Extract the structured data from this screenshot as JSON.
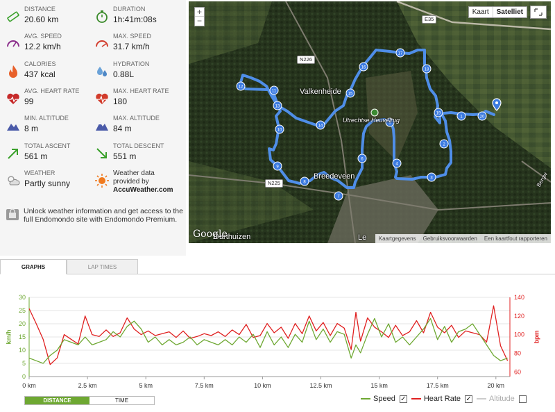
{
  "stats": [
    {
      "label": "DISTANCE",
      "value": "20.60 km",
      "icon": "ruler-icon"
    },
    {
      "label": "DURATION",
      "value": "1h:41m:08s",
      "icon": "stopwatch-icon"
    },
    {
      "label": "AVG. SPEED",
      "value": "12.2 km/h",
      "icon": "speedometer-icon"
    },
    {
      "label": "MAX. SPEED",
      "value": "31.7 km/h",
      "icon": "max-speedometer-icon"
    },
    {
      "label": "CALORIES",
      "value": "437 kcal",
      "icon": "flame-icon"
    },
    {
      "label": "HYDRATION",
      "value": "0.88L",
      "icon": "water-drop-icon"
    },
    {
      "label": "AVG. HEART RATE",
      "value": "99",
      "icon": "heart-icon"
    },
    {
      "label": "MAX. HEART RATE",
      "value": "180",
      "icon": "max-heart-icon"
    },
    {
      "label": "MIN. ALTITUDE",
      "value": "8 m",
      "icon": "mountain-icon"
    },
    {
      "label": "MAX. ALTITUDE",
      "value": "84 m",
      "icon": "max-mountain-icon"
    },
    {
      "label": "TOTAL ASCENT",
      "value": "561 m",
      "icon": "ascent-arrow-icon"
    },
    {
      "label": "TOTAL DESCENT",
      "value": "551 m",
      "icon": "descent-arrow-icon"
    }
  ],
  "weather": {
    "label": "WEATHER",
    "value": "Partly sunny",
    "provider_line1": "Weather data",
    "provider_line2": "provided by",
    "provider_name": "AccuWeather.com"
  },
  "promo": "Unlock weather information and get access to the full Endomondo site with Endomondo Premium.",
  "map": {
    "zoom_in": "+",
    "zoom_out": "−",
    "type_map": "Kaart",
    "type_satellite": "Satelliet",
    "places": [
      "Valkenheide",
      "Utrechtse Heuvelrug",
      "Breedeveen",
      "Darthuizen",
      "Le"
    ],
    "roads": [
      "E35",
      "N226",
      "N225"
    ],
    "side_road": "Bergw",
    "markers": [
      "1",
      "2",
      "3",
      "4",
      "5",
      "6",
      "7",
      "8",
      "9",
      "10",
      "11",
      "12",
      "13",
      "14",
      "15",
      "16",
      "17",
      "18",
      "19",
      "20"
    ],
    "attribution": "Google",
    "footer": [
      "Kaartgegevens",
      "Gebruiksvoorwaarden",
      "Een kaartfout rapporteren"
    ]
  },
  "tabs": [
    "GRAPHS",
    "LAP TIMES"
  ],
  "chart_data": {
    "type": "line",
    "x_label_ticks": [
      "0 km",
      "2.5 km",
      "5 km",
      "7.5 km",
      "10 km",
      "12.5 km",
      "15 km",
      "17.5 km",
      "20 km"
    ],
    "x_ticks": [
      0,
      2.5,
      5,
      7.5,
      10,
      12.5,
      15,
      17.5,
      20
    ],
    "xlim": [
      0,
      20.6
    ],
    "y_left_label": "km/h",
    "y_left_ticks": [
      0,
      5,
      10,
      15,
      20,
      25,
      30
    ],
    "y_left_lim": [
      0,
      30
    ],
    "y_right_label": "bpm",
    "y_right_ticks": [
      60,
      80,
      100,
      120,
      140
    ],
    "y_right_lim": [
      55,
      140
    ],
    "series": [
      {
        "name": "Speed",
        "color": "#6ea832",
        "axis": "left",
        "x": [
          0,
          0.3,
          0.6,
          0.9,
          1.2,
          1.5,
          1.8,
          2.1,
          2.4,
          2.7,
          3.0,
          3.3,
          3.6,
          3.9,
          4.2,
          4.5,
          4.8,
          5.1,
          5.4,
          5.7,
          6.0,
          6.3,
          6.6,
          6.9,
          7.2,
          7.5,
          7.8,
          8.1,
          8.4,
          8.7,
          9.0,
          9.3,
          9.6,
          9.9,
          10.2,
          10.5,
          10.8,
          11.1,
          11.4,
          11.7,
          12.0,
          12.3,
          12.6,
          12.9,
          13.2,
          13.5,
          13.8,
          14.0,
          14.2,
          14.5,
          14.8,
          15.1,
          15.4,
          15.7,
          16.0,
          16.3,
          16.6,
          16.9,
          17.2,
          17.5,
          17.8,
          18.1,
          18.4,
          18.7,
          19.0,
          19.3,
          19.6,
          19.9,
          20.2,
          20.5
        ],
        "y": [
          7,
          6,
          5,
          8,
          10,
          14,
          13,
          12,
          15,
          12,
          13,
          14,
          17,
          15,
          19,
          21,
          18,
          13,
          15,
          12,
          14,
          12,
          13,
          15,
          12,
          14,
          13,
          12,
          14,
          12,
          15,
          13,
          16,
          11,
          17,
          12,
          15,
          11,
          16,
          13,
          21,
          14,
          18,
          13,
          17,
          16,
          7,
          12,
          9,
          16,
          22,
          15,
          20,
          13,
          15,
          12,
          15,
          18,
          22,
          14,
          19,
          13,
          17,
          18,
          20,
          16,
          12,
          8,
          6,
          7
        ]
      },
      {
        "name": "Heart Rate",
        "color": "#e02020",
        "axis": "right",
        "x": [
          0,
          0.3,
          0.6,
          0.9,
          1.2,
          1.5,
          1.8,
          2.1,
          2.4,
          2.7,
          3.0,
          3.3,
          3.6,
          3.9,
          4.2,
          4.5,
          4.8,
          5.1,
          5.4,
          5.7,
          6.0,
          6.3,
          6.6,
          6.9,
          7.2,
          7.5,
          7.8,
          8.1,
          8.4,
          8.7,
          9.0,
          9.3,
          9.6,
          9.9,
          10.2,
          10.5,
          10.8,
          11.1,
          11.4,
          11.7,
          12.0,
          12.3,
          12.6,
          12.9,
          13.2,
          13.5,
          13.8,
          14.0,
          14.2,
          14.5,
          14.8,
          15.1,
          15.4,
          15.7,
          16.0,
          16.3,
          16.6,
          16.9,
          17.2,
          17.5,
          17.8,
          18.1,
          18.4,
          18.7,
          19.0,
          19.3,
          19.6,
          19.9,
          20.2,
          20.5
        ],
        "y": [
          128,
          112,
          95,
          68,
          75,
          100,
          95,
          90,
          120,
          100,
          98,
          105,
          98,
          102,
          118,
          106,
          100,
          104,
          99,
          101,
          103,
          97,
          104,
          96,
          98,
          101,
          99,
          103,
          98,
          105,
          100,
          111,
          97,
          99,
          112,
          102,
          108,
          96,
          112,
          101,
          120,
          104,
          113,
          99,
          112,
          107,
          84,
          124,
          93,
          118,
          108,
          103,
          97,
          110,
          99,
          103,
          115,
          102,
          124,
          108,
          102,
          110,
          97,
          104,
          102,
          100,
          92,
          131,
          88,
          72
        ]
      },
      {
        "name": "Altitude",
        "color": "#cccccc",
        "axis": "right",
        "hidden": true,
        "x": [],
        "y": []
      }
    ],
    "legend": [
      {
        "label": "Speed",
        "checked": true
      },
      {
        "label": "Heart Rate",
        "checked": true
      },
      {
        "label": "Altitude",
        "checked": false
      }
    ],
    "grid": true
  },
  "toggle": {
    "distance": "DISTANCE",
    "time": "TIME",
    "active": "DISTANCE"
  }
}
